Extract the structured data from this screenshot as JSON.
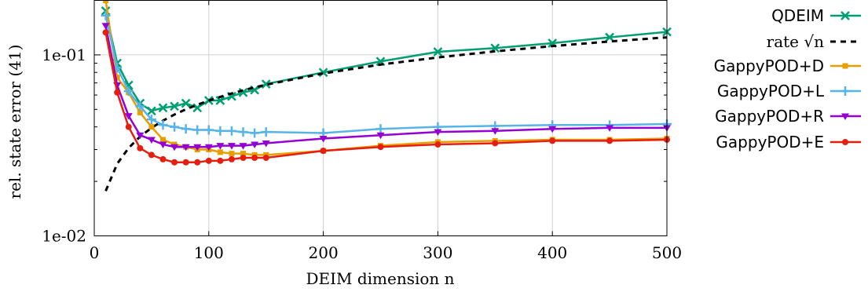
{
  "chart_data": {
    "type": "line",
    "xlabel": "DEIM dimension n",
    "ylabel": "rel. state error (41)",
    "x_scale": "linear",
    "y_scale": "log",
    "xlim": [
      0,
      500
    ],
    "ylim": [
      0.01,
      0.2
    ],
    "x_ticks": [
      0,
      100,
      200,
      300,
      400,
      500
    ],
    "x_tick_labels": [
      "0",
      "100",
      "200",
      "300",
      "400",
      "500"
    ],
    "y_ticks": [
      0.01,
      0.1
    ],
    "y_tick_labels": [
      "1e-02",
      "1e-01"
    ],
    "grid": true,
    "legend_position": "right",
    "series": [
      {
        "name": "QDEIM",
        "color": "#009e73",
        "marker": "x",
        "dashed": false,
        "x": [
          10,
          20,
          30,
          40,
          50,
          60,
          70,
          80,
          90,
          100,
          110,
          120,
          130,
          140,
          150,
          200,
          250,
          300,
          350,
          400,
          450,
          500
        ],
        "y": [
          0.175,
          0.09,
          0.068,
          0.054,
          0.049,
          0.051,
          0.052,
          0.054,
          0.051,
          0.056,
          0.056,
          0.059,
          0.062,
          0.064,
          0.069,
          0.08,
          0.092,
          0.104,
          0.109,
          0.116,
          0.125,
          0.134
        ]
      },
      {
        "name": "rate √n",
        "color": "#000000",
        "marker": "none",
        "dashed": true,
        "x": [
          10,
          20,
          30,
          40,
          50,
          60,
          70,
          80,
          90,
          100,
          110,
          120,
          130,
          140,
          150,
          200,
          250,
          300,
          350,
          400,
          450,
          500
        ],
        "y": [
          0.0177,
          0.025,
          0.0306,
          0.0354,
          0.0395,
          0.0433,
          0.0468,
          0.05,
          0.053,
          0.0559,
          0.0586,
          0.0612,
          0.0637,
          0.0661,
          0.0684,
          0.079,
          0.0884,
          0.0968,
          0.1046,
          0.1118,
          0.1186,
          0.125
        ]
      },
      {
        "name": "GappyPOD+D",
        "color": "#e69f00",
        "marker": "square",
        "dashed": false,
        "x": [
          10,
          20,
          30,
          40,
          50,
          60,
          70,
          80,
          90,
          100,
          110,
          120,
          130,
          140,
          150,
          200,
          250,
          300,
          350,
          400,
          450,
          500
        ],
        "y": [
          0.2,
          0.075,
          0.062,
          0.048,
          0.04,
          0.034,
          0.032,
          0.031,
          0.03,
          0.03,
          0.029,
          0.0285,
          0.0285,
          0.028,
          0.028,
          0.0295,
          0.0315,
          0.033,
          0.0335,
          0.034,
          0.034,
          0.0345
        ]
      },
      {
        "name": "GappyPOD+L",
        "color": "#56b4e9",
        "marker": "plus",
        "dashed": false,
        "x": [
          10,
          20,
          30,
          40,
          50,
          60,
          70,
          80,
          90,
          100,
          110,
          120,
          130,
          140,
          150,
          200,
          250,
          300,
          350,
          400,
          450,
          500
        ],
        "y": [
          0.165,
          0.085,
          0.063,
          0.052,
          0.044,
          0.041,
          0.04,
          0.039,
          0.0385,
          0.0385,
          0.038,
          0.038,
          0.0375,
          0.037,
          0.0375,
          0.037,
          0.039,
          0.04,
          0.0405,
          0.041,
          0.041,
          0.0415
        ]
      },
      {
        "name": "GappyPOD+R",
        "color": "#9400d3",
        "marker": "triangle-down",
        "dashed": false,
        "x": [
          10,
          20,
          30,
          40,
          50,
          60,
          70,
          80,
          90,
          100,
          110,
          120,
          130,
          140,
          150,
          200,
          250,
          300,
          350,
          400,
          450,
          500
        ],
        "y": [
          0.145,
          0.068,
          0.046,
          0.036,
          0.034,
          0.032,
          0.031,
          0.031,
          0.031,
          0.031,
          0.0315,
          0.0315,
          0.0315,
          0.032,
          0.0325,
          0.0345,
          0.036,
          0.0375,
          0.038,
          0.039,
          0.0395,
          0.0395
        ]
      },
      {
        "name": "GappyPOD+E",
        "color": "#e51e10",
        "marker": "circle",
        "dashed": false,
        "x": [
          10,
          20,
          30,
          40,
          50,
          60,
          70,
          80,
          90,
          100,
          110,
          120,
          130,
          140,
          150,
          200,
          250,
          300,
          350,
          400,
          450,
          500
        ],
        "y": [
          0.133,
          0.062,
          0.04,
          0.0305,
          0.028,
          0.0265,
          0.0255,
          0.0255,
          0.0255,
          0.026,
          0.026,
          0.0265,
          0.027,
          0.027,
          0.027,
          0.0295,
          0.031,
          0.032,
          0.0325,
          0.0335,
          0.0335,
          0.034
        ]
      }
    ]
  }
}
